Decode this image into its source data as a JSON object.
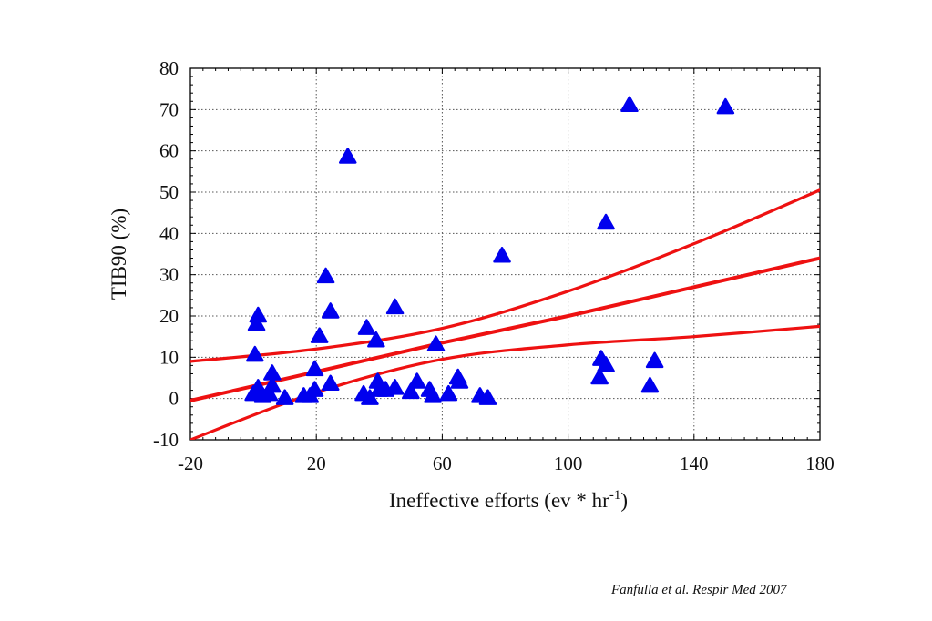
{
  "chart_data": {
    "type": "scatter",
    "title": "",
    "xlabel": "Ineffective efforts (ev * hr",
    "xlabel_sup": "-1",
    "xlabel_end": ")",
    "ylabel": "TIB90 (%)",
    "xlim": [
      -20,
      180
    ],
    "ylim": [
      -10,
      80
    ],
    "xticks": [
      -20,
      20,
      60,
      100,
      140,
      180
    ],
    "yticks": [
      -10,
      0,
      10,
      20,
      30,
      40,
      50,
      60,
      70,
      80
    ],
    "grid": true,
    "marker": "triangle",
    "marker_color": "#0000ee",
    "line_color": "#ee1111",
    "series": [
      {
        "values": [
          [
            0,
            1
          ],
          [
            0.5,
            10.5
          ],
          [
            1,
            18
          ],
          [
            1.5,
            20
          ],
          [
            1.5,
            2.5
          ],
          [
            3,
            0.5
          ],
          [
            5,
            1
          ],
          [
            6,
            3
          ],
          [
            6,
            6
          ],
          [
            10,
            0
          ],
          [
            16,
            0.5
          ],
          [
            18,
            0.5
          ],
          [
            19.5,
            2
          ],
          [
            19.5,
            7
          ],
          [
            21,
            15
          ],
          [
            23,
            29.5
          ],
          [
            24.5,
            21
          ],
          [
            24.5,
            3.5
          ],
          [
            30,
            58.5
          ],
          [
            35,
            1
          ],
          [
            36,
            17
          ],
          [
            37,
            0
          ],
          [
            39,
            14
          ],
          [
            39.5,
            4
          ],
          [
            40,
            2
          ],
          [
            42,
            2
          ],
          [
            45,
            2.5
          ],
          [
            45,
            22
          ],
          [
            50,
            1.5
          ],
          [
            52,
            4
          ],
          [
            56,
            2
          ],
          [
            57,
            0.5
          ],
          [
            58,
            13
          ],
          [
            62,
            1
          ],
          [
            65,
            5
          ],
          [
            65.5,
            4
          ],
          [
            72,
            0.5
          ],
          [
            74.5,
            0
          ],
          [
            79,
            34.5
          ],
          [
            110,
            5
          ],
          [
            110.5,
            9.5
          ],
          [
            112,
            8
          ],
          [
            112,
            42.5
          ],
          [
            119.5,
            71
          ],
          [
            126,
            3
          ],
          [
            127.5,
            9
          ],
          [
            150,
            70.5
          ]
        ]
      }
    ],
    "fit_lines": [
      {
        "x": [
          -20,
          20,
          60,
          100,
          140,
          180
        ],
        "y": [
          -0.5,
          6.5,
          13.5,
          20,
          27,
          34
        ]
      },
      {
        "x": [
          -20,
          20,
          60,
          100,
          140,
          180
        ],
        "y": [
          9,
          12,
          17,
          26,
          37.5,
          50.5
        ]
      },
      {
        "x": [
          -20,
          20,
          60,
          100,
          140,
          180
        ],
        "y": [
          -10,
          1.5,
          9.5,
          13,
          15,
          17.5
        ]
      }
    ]
  },
  "citation": "Fanfulla et al. Respir Med 2007"
}
